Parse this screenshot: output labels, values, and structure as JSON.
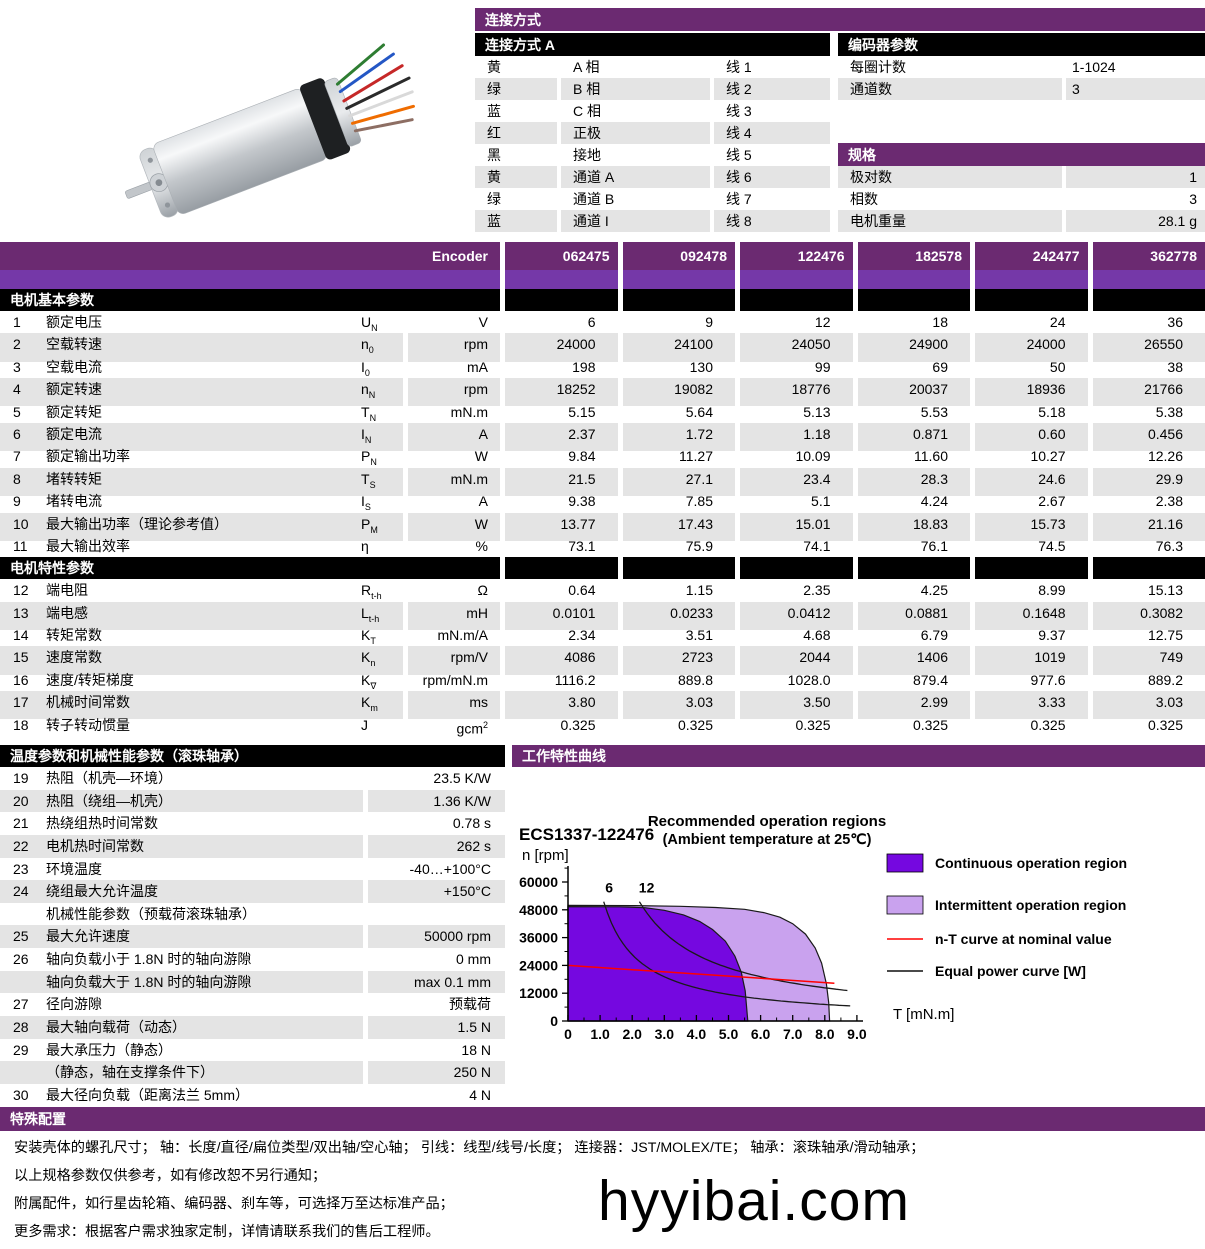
{
  "connection": {
    "title": "连接方式",
    "subtitle": "连接方式 A",
    "rows": [
      {
        "color": "黄",
        "func": "A 相",
        "wire": "线 1"
      },
      {
        "color": "绿",
        "func": "B 相",
        "wire": "线 2"
      },
      {
        "color": "蓝",
        "func": "C 相",
        "wire": "线 3"
      },
      {
        "color": "红",
        "func": "正极",
        "wire": "线 4"
      },
      {
        "color": "黑",
        "func": "接地",
        "wire": "线 5"
      },
      {
        "color": "黄",
        "func": "通道 A",
        "wire": "线 6"
      },
      {
        "color": "绿",
        "func": "通道 B",
        "wire": "线 7"
      },
      {
        "color": "蓝",
        "func": "通道 I",
        "wire": "线 8"
      }
    ]
  },
  "encoder_params": {
    "title": "编码器参数",
    "rows": [
      {
        "label": "每圈计数",
        "value": "1-1024"
      },
      {
        "label": "通道数",
        "value": "3"
      }
    ]
  },
  "specs": {
    "title": "规格",
    "rows": [
      {
        "label": "极对数",
        "value": "1"
      },
      {
        "label": "相数",
        "value": "3"
      },
      {
        "label": "电机重量",
        "value": "28.1 g"
      }
    ]
  },
  "main_table": {
    "header_label": "Encoder",
    "columns": [
      "062475",
      "092478",
      "122476",
      "182578",
      "242477",
      "362778"
    ],
    "sections": [
      {
        "title": "电机基本参数",
        "rows": [
          {
            "no": "1",
            "label": "额定电压",
            "sym": "U",
            "sub": "N",
            "unit": "V",
            "values": [
              "6",
              "9",
              "12",
              "18",
              "24",
              "36"
            ]
          },
          {
            "no": "2",
            "label": "空载转速",
            "sym": "n",
            "sub": "0",
            "unit": "rpm",
            "values": [
              "24000",
              "24100",
              "24050",
              "24900",
              "24000",
              "26550"
            ]
          },
          {
            "no": "3",
            "label": "空载电流",
            "sym": "I",
            "sub": "0",
            "unit": "mA",
            "values": [
              "198",
              "130",
              "99",
              "69",
              "50",
              "38"
            ]
          },
          {
            "no": "4",
            "label": "额定转速",
            "sym": "n",
            "sub": "N",
            "unit": "rpm",
            "values": [
              "18252",
              "19082",
              "18776",
              "20037",
              "18936",
              "21766"
            ]
          },
          {
            "no": "5",
            "label": "额定转矩",
            "sym": "T",
            "sub": "N",
            "unit": "mN.m",
            "values": [
              "5.15",
              "5.64",
              "5.13",
              "5.53",
              "5.18",
              "5.38"
            ]
          },
          {
            "no": "6",
            "label": "额定电流",
            "sym": "I",
            "sub": "N",
            "unit": "A",
            "values": [
              "2.37",
              "1.72",
              "1.18",
              "0.871",
              "0.60",
              "0.456"
            ]
          },
          {
            "no": "7",
            "label": "额定输出功率",
            "sym": "P",
            "sub": "N",
            "unit": "W",
            "values": [
              "9.84",
              "11.27",
              "10.09",
              "11.60",
              "10.27",
              "12.26"
            ]
          },
          {
            "no": "8",
            "label": "堵转转矩",
            "sym": "T",
            "sub": "S",
            "unit": "mN.m",
            "values": [
              "21.5",
              "27.1",
              "23.4",
              "28.3",
              "24.6",
              "29.9"
            ]
          },
          {
            "no": "9",
            "label": "堵转电流",
            "sym": "I",
            "sub": "S",
            "unit": "A",
            "values": [
              "9.38",
              "7.85",
              "5.1",
              "4.24",
              "2.67",
              "2.38"
            ]
          },
          {
            "no": "10",
            "label": "最大输出功率（理论参考值）",
            "sym": "P",
            "sub": "M",
            "unit": "W",
            "values": [
              "13.77",
              "17.43",
              "15.01",
              "18.83",
              "15.73",
              "21.16"
            ]
          },
          {
            "no": "11",
            "label": "最大输出效率",
            "sym": "η",
            "sub": "",
            "unit": "%",
            "values": [
              "73.1",
              "75.9",
              "74.1",
              "76.1",
              "74.5",
              "76.3"
            ]
          }
        ]
      },
      {
        "title": "电机特性参数",
        "rows": [
          {
            "no": "12",
            "label": "端电阻",
            "sym": "R",
            "sub": "t-h",
            "unit": "Ω",
            "values": [
              "0.64",
              "1.15",
              "2.35",
              "4.25",
              "8.99",
              "15.13"
            ]
          },
          {
            "no": "13",
            "label": "端电感",
            "sym": "L",
            "sub": "t-h",
            "unit": "mH",
            "values": [
              "0.0101",
              "0.0233",
              "0.0412",
              "0.0881",
              "0.1648",
              "0.3082"
            ]
          },
          {
            "no": "14",
            "label": "转矩常数",
            "sym": "K",
            "sub": "T",
            "unit": "mN.m/A",
            "values": [
              "2.34",
              "3.51",
              "4.68",
              "6.79",
              "9.37",
              "12.75"
            ]
          },
          {
            "no": "15",
            "label": "速度常数",
            "sym": "K",
            "sub": "n",
            "unit": "rpm/V",
            "values": [
              "4086",
              "2723",
              "2044",
              "1406",
              "1019",
              "749"
            ]
          },
          {
            "no": "16",
            "label": "速度/转矩梯度",
            "sym": "K",
            "sub": "∇",
            "unit": "rpm/mN.m",
            "values": [
              "1116.2",
              "889.8",
              "1028.0",
              "879.4",
              "977.6",
              "889.2"
            ]
          },
          {
            "no": "17",
            "label": "机械时间常数",
            "sym": "K",
            "sub": "m",
            "unit": "ms",
            "values": [
              "3.80",
              "3.03",
              "3.50",
              "2.99",
              "3.33",
              "3.03"
            ]
          },
          {
            "no": "18",
            "label": "转子转动惯量",
            "sym": "J",
            "sub": "",
            "unit": "gcm",
            "unit_sup": "2",
            "values": [
              "0.325",
              "0.325",
              "0.325",
              "0.325",
              "0.325",
              "0.325"
            ]
          }
        ]
      }
    ]
  },
  "temp_table": {
    "title": "温度参数和机械性能参数（滚珠轴承）",
    "rows": [
      {
        "no": "19",
        "label": "热阻（机壳—环境）",
        "value": "23.5 K/W"
      },
      {
        "no": "20",
        "label": "热阻（绕组—机壳）",
        "value": "1.36 K/W"
      },
      {
        "no": "21",
        "label": "热绕组热时间常数",
        "value": "0.78 s"
      },
      {
        "no": "22",
        "label": "电机热时间常数",
        "value": "262 s"
      },
      {
        "no": "23",
        "label": "环境温度",
        "value": "-40…+100°C"
      },
      {
        "no": "24",
        "label": "绕组最大允许温度",
        "value": "+150°C"
      },
      {
        "no": "",
        "label": "机械性能参数（预载荷滚珠轴承）",
        "value": ""
      },
      {
        "no": "25",
        "label": "最大允许速度",
        "value": "50000 rpm"
      },
      {
        "no": "26",
        "label": "轴向负载小于 1.8N 时的轴向游隙",
        "value": "0 mm"
      },
      {
        "no": "",
        "label": "轴向负载大于 1.8N 时的轴向游隙",
        "value": "max 0.1 mm"
      },
      {
        "no": "27",
        "label": "径向游隙",
        "value": "预载荷"
      },
      {
        "no": "28",
        "label": "最大轴向载荷（动态）",
        "value": "1.5 N"
      },
      {
        "no": "29",
        "label": "最大承压力（静态）",
        "value": "18 N"
      },
      {
        "no": "",
        "label": "（静态，轴在支撑条件下）",
        "value": "250 N"
      },
      {
        "no": "30",
        "label": "最大径向负载（距离法兰 5mm）",
        "value": "4 N"
      }
    ]
  },
  "curve_panel": {
    "title": "工作特性曲线"
  },
  "chart_data": {
    "type": "area",
    "model": "ECS1337-122476",
    "title": "Recommended operation  regions",
    "subtitle": "(Ambient temperature at 25℃)",
    "xlabel": "T [mN.m]",
    "ylabel": "n [rpm]",
    "xlim": [
      0,
      9
    ],
    "ylim": [
      0,
      60000
    ],
    "x_ticks": [
      "0",
      "1.0",
      "2.0",
      "3.0",
      "4.0",
      "5.0",
      "6.0",
      "7.0",
      "8.0",
      "9.0"
    ],
    "y_ticks": [
      "0",
      "12000",
      "24000",
      "36000",
      "48000",
      "60000"
    ],
    "regions": [
      {
        "name": "Intermittent operation region",
        "color": "#c9a2ee",
        "points": [
          [
            0,
            49900
          ],
          [
            2.0,
            49800
          ],
          [
            3.5,
            49500
          ],
          [
            4.6,
            49000
          ],
          [
            5.5,
            48200
          ],
          [
            6.1,
            46800
          ],
          [
            6.6,
            44800
          ],
          [
            7.0,
            42000
          ],
          [
            7.4,
            37500
          ],
          [
            7.7,
            31500
          ],
          [
            7.9,
            25000
          ],
          [
            8.05,
            16000
          ],
          [
            8.12,
            8000
          ],
          [
            8.15,
            0
          ]
        ]
      },
      {
        "name": "Continuous operation region",
        "color": "#7508e0",
        "points": [
          [
            0,
            49400
          ],
          [
            1.6,
            49300
          ],
          [
            2.4,
            48900
          ],
          [
            3.0,
            47800
          ],
          [
            3.6,
            45800
          ],
          [
            4.1,
            43000
          ],
          [
            4.5,
            39500
          ],
          [
            4.9,
            34500
          ],
          [
            5.2,
            28000
          ],
          [
            5.4,
            21000
          ],
          [
            5.52,
            13000
          ],
          [
            5.6,
            0
          ]
        ]
      }
    ],
    "nT_curve": {
      "name": "n-T curve at nominal value",
      "color": "#ff0000",
      "points": [
        [
          0,
          24000
        ],
        [
          8.3,
          16300
        ]
      ]
    },
    "equal_power_curves": {
      "name": "Equal power curve [W]",
      "color": "#4a4a4a",
      "watts": [
        6,
        12
      ],
      "labels": [
        "6",
        "12"
      ],
      "label_positions": [
        [
          1.28,
          55500
        ],
        [
          2.45,
          55500
        ]
      ]
    },
    "legend_position": "right"
  },
  "special": {
    "title": "特殊配置",
    "lines": [
      "安装壳体的螺孔尺寸；  轴：长度/直径/扁位类型/双出轴/空心轴；  引线：线型/线号/长度；  连接器：JST/MOLEX/TE；  轴承：滚珠轴承/滑动轴承；",
      "以上规格参数仅供参考，如有修改恕不另行通知；",
      "附属配件，如行星齿轮箱、编码器、刹车等，可选择万至达标准产品；",
      "更多需求：根据客户需求独家定制，详情请联系我们的售后工程师。"
    ],
    "watermark": "hyyibai.com"
  }
}
